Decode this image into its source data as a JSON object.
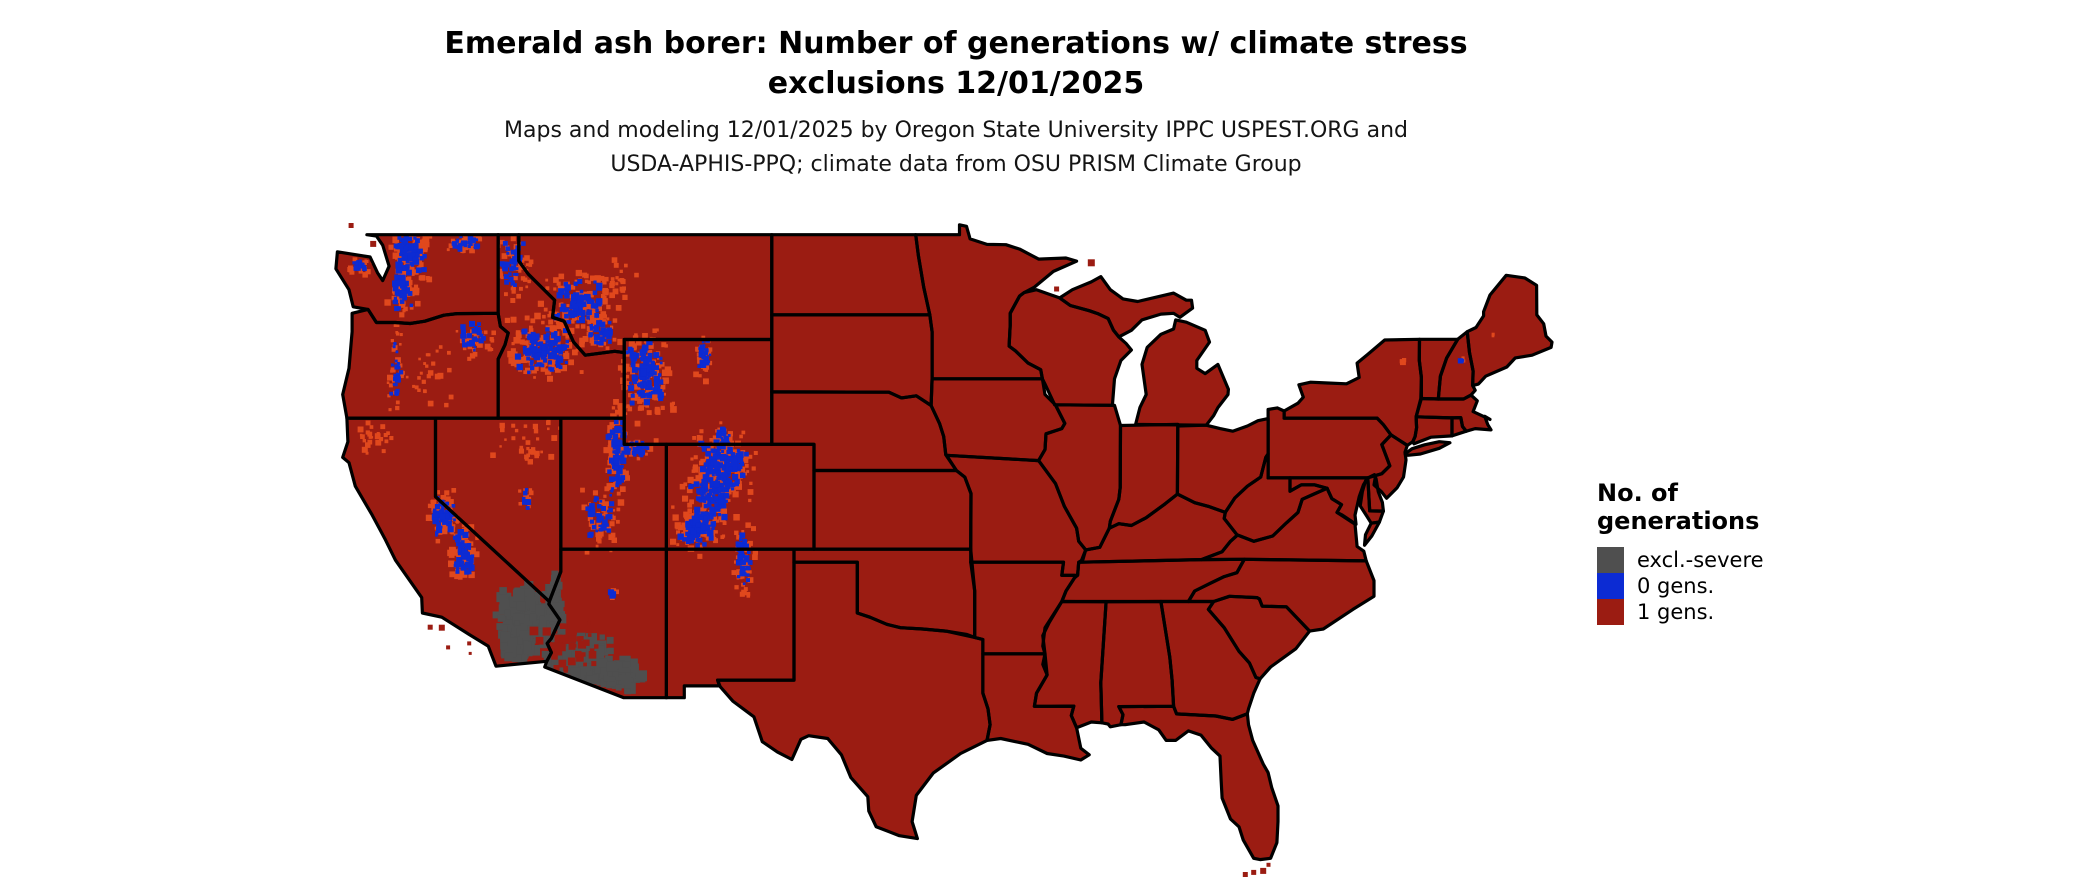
{
  "title": {
    "line1": "Emerald ash borer: Number of generations w/ climate stress",
    "line2": "exclusions 12/01/2025"
  },
  "subtitle": {
    "line1": "Maps and modeling 12/01/2025 by Oregon State University IPPC USPEST.ORG and",
    "line2": "USDA-APHIS-PPQ; climate data from OSU PRISM Climate Group"
  },
  "legend": {
    "title_line1": "No. of",
    "title_line2": "generations",
    "items": [
      {
        "label": "excl.-severe",
        "color_key": "excluded"
      },
      {
        "label": "0 gens.",
        "color_key": "gen0"
      },
      {
        "label": "1 gens.",
        "color_key": "gen1"
      }
    ]
  },
  "colors": {
    "excluded": "#4f4f4f",
    "gen0": "#0c2bd3",
    "gen1": "#9b1c12",
    "transition": "#e0481d",
    "border": "#000000",
    "background": "#ffffff"
  },
  "map": {
    "overlays": [
      {
        "region": "north-cascades-wa",
        "color_key": "gen0",
        "halo": true,
        "lon": -121.2,
        "lat": 48.3,
        "rlon": 0.55,
        "rlat": 0.6,
        "n": 70,
        "size": 4.5
      },
      {
        "region": "south-cascades-wa",
        "color_key": "gen0",
        "halo": true,
        "lon": -121.55,
        "lat": 46.9,
        "rlon": 0.4,
        "rlat": 0.6,
        "n": 45,
        "size": 4.5
      },
      {
        "region": "olympic-mountains",
        "color_key": "gen0",
        "halo": true,
        "lon": -123.5,
        "lat": 47.8,
        "rlon": 0.3,
        "rlat": 0.22,
        "n": 16,
        "size": 4
      },
      {
        "region": "okanogan-ne-wa",
        "color_key": "gen0",
        "halo": true,
        "lon": -118.6,
        "lat": 48.7,
        "rlon": 0.6,
        "rlat": 0.3,
        "n": 25,
        "size": 4
      },
      {
        "region": "idaho-panhandle",
        "color_key": "gen0",
        "halo": true,
        "lon": -116.3,
        "lat": 47.9,
        "rlon": 0.5,
        "rlat": 0.8,
        "n": 40,
        "size": 4
      },
      {
        "region": "blue-mountains-or",
        "color_key": "gen0",
        "halo": true,
        "lon": -118.2,
        "lat": 45.1,
        "rlon": 0.55,
        "rlat": 0.45,
        "n": 26,
        "size": 4
      },
      {
        "region": "oregon-cascades",
        "color_key": "gen0",
        "halo": true,
        "lon": -121.9,
        "lat": 43.9,
        "rlon": 0.22,
        "rlat": 1.1,
        "n": 22,
        "size": 4
      },
      {
        "region": "central-idaho-rockies",
        "color_key": "gen0",
        "halo": true,
        "lon": -114.9,
        "lat": 44.6,
        "rlon": 1.0,
        "rlat": 0.75,
        "n": 110,
        "size": 4.5
      },
      {
        "region": "western-montana",
        "color_key": "gen0",
        "halo": true,
        "lon": -113.2,
        "lat": 46.3,
        "rlon": 0.95,
        "rlat": 0.8,
        "n": 80,
        "size": 4.5
      },
      {
        "region": "southwest-montana",
        "color_key": "gen0",
        "halo": true,
        "lon": -112.2,
        "lat": 45.2,
        "rlon": 0.5,
        "rlat": 0.35,
        "n": 25,
        "size": 4
      },
      {
        "region": "yellowstone-wind-river",
        "color_key": "gen0",
        "halo": true,
        "lon": -110.0,
        "lat": 43.7,
        "rlon": 0.75,
        "rlat": 1.0,
        "n": 110,
        "size": 4.5
      },
      {
        "region": "bighorn-mountains",
        "color_key": "gen0",
        "halo": true,
        "lon": -107.3,
        "lat": 44.3,
        "rlon": 0.25,
        "rlat": 0.5,
        "n": 25,
        "size": 4
      },
      {
        "region": "medicine-bow",
        "color_key": "gen0",
        "halo": true,
        "lon": -106.4,
        "lat": 41.2,
        "rlon": 0.3,
        "rlat": 0.35,
        "n": 18,
        "size": 4
      },
      {
        "region": "wasatch-range",
        "color_key": "gen0",
        "halo": true,
        "lon": -111.4,
        "lat": 40.6,
        "rlon": 0.3,
        "rlat": 1.1,
        "n": 55,
        "size": 4.5
      },
      {
        "region": "uinta-mountains",
        "color_key": "gen0",
        "halo": true,
        "lon": -110.4,
        "lat": 40.8,
        "rlon": 0.55,
        "rlat": 0.22,
        "n": 28,
        "size": 4
      },
      {
        "region": "south-utah-plateaus",
        "color_key": "gen0",
        "halo": true,
        "lon": -112.2,
        "lat": 38.2,
        "rlon": 0.5,
        "rlat": 0.7,
        "n": 40,
        "size": 4
      },
      {
        "region": "colorado-front-range",
        "color_key": "gen0",
        "halo": true,
        "lon": -106.3,
        "lat": 40.2,
        "rlon": 0.85,
        "rlat": 0.75,
        "n": 110,
        "size": 4.5
      },
      {
        "region": "colorado-central-rockies",
        "color_key": "gen0",
        "halo": true,
        "lon": -106.9,
        "lat": 39.0,
        "rlon": 0.8,
        "rlat": 0.6,
        "n": 80,
        "size": 4.5
      },
      {
        "region": "san-juan-mountains",
        "color_key": "gen0",
        "halo": true,
        "lon": -107.6,
        "lat": 37.7,
        "rlon": 0.65,
        "rlat": 0.5,
        "n": 70,
        "size": 4.5
      },
      {
        "region": "sangre-de-cristo",
        "color_key": "gen0",
        "halo": true,
        "lon": -105.4,
        "lat": 36.6,
        "rlon": 0.3,
        "rlat": 0.8,
        "n": 45,
        "size": 4
      },
      {
        "region": "sierra-nevada-north",
        "color_key": "gen0",
        "halo": true,
        "lon": -119.6,
        "lat": 38.3,
        "rlon": 0.4,
        "rlat": 0.6,
        "n": 50,
        "size": 4.5
      },
      {
        "region": "sierra-nevada-south",
        "color_key": "gen0",
        "halo": true,
        "lon": -118.7,
        "lat": 36.9,
        "rlon": 0.35,
        "rlat": 0.7,
        "n": 50,
        "size": 4.5
      },
      {
        "region": "great-basin-peaks",
        "color_key": "gen0",
        "halo": true,
        "lon": -115.7,
        "lat": 38.9,
        "rlon": 0.2,
        "rlat": 0.35,
        "n": 8,
        "size": 4
      },
      {
        "region": "san-francisco-peaks",
        "color_key": "gen0",
        "halo": true,
        "lon": -111.6,
        "lat": 35.3,
        "rlon": 0.12,
        "rlat": 0.12,
        "n": 5,
        "size": 4
      },
      {
        "region": "white-mountains-nh",
        "color_key": "gen0",
        "halo": true,
        "lon": -71.35,
        "lat": 44.2,
        "rlon": 0.08,
        "rlat": 0.08,
        "n": 3,
        "size": 4
      },
      {
        "region": "mojave-desert-ca",
        "color_key": "excluded",
        "halo": false,
        "lon": -115.7,
        "lat": 34.3,
        "rlon": 1.1,
        "rlat": 1.1,
        "n": 150,
        "size": 8
      },
      {
        "region": "colorado-river-strip",
        "color_key": "excluded",
        "halo": false,
        "lon": -114.35,
        "lat": 34.8,
        "rlon": 0.3,
        "rlat": 1.0,
        "n": 60,
        "size": 7
      },
      {
        "region": "sonoran-desert-az",
        "color_key": "excluded",
        "halo": false,
        "lon": -113.2,
        "lat": 32.7,
        "rlon": 1.3,
        "rlat": 0.85,
        "n": 160,
        "size": 8
      },
      {
        "region": "salton-imperial-ca",
        "color_key": "excluded",
        "halo": false,
        "lon": -116.2,
        "lat": 33.1,
        "rlon": 0.55,
        "rlat": 0.5,
        "n": 45,
        "size": 8
      },
      {
        "region": "tucson-basin-az",
        "color_key": "excluded",
        "halo": false,
        "lon": -111.2,
        "lat": 32.2,
        "rlon": 0.75,
        "rlat": 0.55,
        "n": 60,
        "size": 8
      },
      {
        "region": "red-patches-in-desert",
        "color_key": "gen1",
        "halo": false,
        "lon": -113.8,
        "lat": 33.3,
        "rlon": 1.4,
        "rlat": 0.9,
        "n": 45,
        "size": 6
      },
      {
        "region": "oregon-high-desert",
        "color_key": "transition",
        "halo": false,
        "lon": -120.6,
        "lat": 43.6,
        "rlon": 1.4,
        "rlat": 0.9,
        "n": 30,
        "size": 4
      },
      {
        "region": "northeast-nevada",
        "color_key": "transition",
        "halo": false,
        "lon": -115.6,
        "lat": 41.2,
        "rlon": 1.3,
        "rlat": 0.7,
        "n": 25,
        "size": 4
      },
      {
        "region": "klamath-shasta-ca",
        "color_key": "transition",
        "halo": false,
        "lon": -122.8,
        "lat": 41.2,
        "rlon": 0.8,
        "rlat": 0.5,
        "n": 25,
        "size": 4
      },
      {
        "region": "montana-rocky-front",
        "color_key": "transition",
        "halo": false,
        "lon": -111.6,
        "lat": 47.2,
        "rlon": 0.9,
        "rlat": 0.8,
        "n": 30,
        "size": 4
      },
      {
        "region": "adirondacks",
        "color_key": "transition",
        "halo": false,
        "lon": -74.2,
        "lat": 44.2,
        "rlon": 0.15,
        "rlat": 0.12,
        "n": 3,
        "size": 4
      },
      {
        "region": "maine-highlands",
        "color_key": "transition",
        "halo": false,
        "lon": -69.8,
        "lat": 45.2,
        "rlon": 0.12,
        "rlat": 0.1,
        "n": 2,
        "size": 4
      },
      {
        "region": "ruby-mountains",
        "color_key": "transition",
        "halo": false,
        "lon": -115.4,
        "lat": 40.6,
        "rlon": 0.25,
        "rlat": 0.3,
        "n": 10,
        "size": 4
      }
    ]
  }
}
